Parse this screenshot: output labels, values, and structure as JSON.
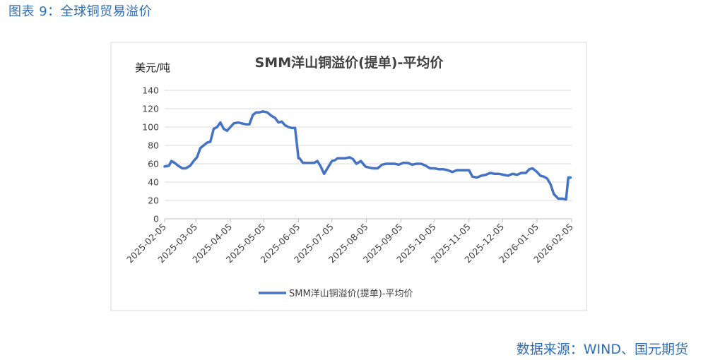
{
  "header": {
    "figure_title": "图表 9：全球铜贸易溢价"
  },
  "footer": {
    "source": "数据来源：WIND、国元期货"
  },
  "colors": {
    "accent": "#2e6db4",
    "series": "#4472c4",
    "grid": "#d9d9d9",
    "axis": "#bfbfbf"
  },
  "chart_data": {
    "type": "line",
    "title": "SMM洋山铜溢价(提单)-平均价",
    "unit_label": "美元/吨",
    "xlabel": "",
    "ylabel": "",
    "ylim": [
      0,
      140
    ],
    "yticks": [
      0,
      20,
      40,
      60,
      80,
      100,
      120,
      140
    ],
    "xlim": [
      "2025-02-05",
      "2026-02-05"
    ],
    "xticks": [
      "2025-02-05",
      "2025-03-05",
      "2025-04-05",
      "2025-05-05",
      "2025-06-05",
      "2025-07-05",
      "2025-08-05",
      "2025-09-05",
      "2025-10-05",
      "2025-11-05",
      "2025-12-05",
      "2026-01-05",
      "2026-02-05"
    ],
    "grid": true,
    "legend_position": "bottom",
    "series": [
      {
        "name": "SMM洋山铜溢价(提单)-平均价",
        "x": [
          "2025-02-05",
          "2025-02-09",
          "2025-02-11",
          "2025-02-14",
          "2025-02-17",
          "2025-02-21",
          "2025-02-24",
          "2025-02-28",
          "2025-03-03",
          "2025-03-06",
          "2025-03-09",
          "2025-03-12",
          "2025-03-15",
          "2025-03-18",
          "2025-03-21",
          "2025-03-24",
          "2025-03-27",
          "2025-03-30",
          "2025-04-02",
          "2025-04-05",
          "2025-04-08",
          "2025-04-12",
          "2025-04-15",
          "2025-04-19",
          "2025-04-22",
          "2025-04-25",
          "2025-04-28",
          "2025-05-01",
          "2025-05-04",
          "2025-05-08",
          "2025-05-12",
          "2025-05-15",
          "2025-05-18",
          "2025-05-21",
          "2025-05-24",
          "2025-05-27",
          "2025-05-30",
          "2025-06-02",
          "2025-06-05",
          "2025-06-06",
          "2025-06-09",
          "2025-06-12",
          "2025-06-16",
          "2025-06-19",
          "2025-06-22",
          "2025-06-25",
          "2025-06-28",
          "2025-07-01",
          "2025-07-05",
          "2025-07-08",
          "2025-07-10",
          "2025-07-14",
          "2025-07-17",
          "2025-07-21",
          "2025-07-24",
          "2025-07-27",
          "2025-07-31",
          "2025-08-04",
          "2025-08-07",
          "2025-08-11",
          "2025-08-15",
          "2025-08-19",
          "2025-08-23",
          "2025-08-26",
          "2025-08-30",
          "2025-09-03",
          "2025-09-07",
          "2025-09-11",
          "2025-09-15",
          "2025-09-19",
          "2025-09-23",
          "2025-09-27",
          "2025-10-01",
          "2025-10-05",
          "2025-10-09",
          "2025-10-13",
          "2025-10-17",
          "2025-10-21",
          "2025-10-25",
          "2025-10-29",
          "2025-11-02",
          "2025-11-05",
          "2025-11-08",
          "2025-11-12",
          "2025-11-16",
          "2025-11-20",
          "2025-11-24",
          "2025-11-28",
          "2025-12-02",
          "2025-12-06",
          "2025-12-10",
          "2025-12-14",
          "2025-12-18",
          "2025-12-22",
          "2025-12-26",
          "2025-12-29",
          "2026-01-01",
          "2026-01-05",
          "2026-01-08",
          "2026-01-11",
          "2026-01-14",
          "2026-01-17",
          "2026-01-20",
          "2026-01-24",
          "2026-01-28",
          "2026-01-31",
          "2026-02-02",
          "2026-02-04"
        ],
        "values": [
          57,
          58,
          63,
          61,
          58,
          55,
          55,
          58,
          63,
          67,
          77,
          80,
          83,
          84,
          98,
          100,
          105,
          98,
          96,
          100,
          104,
          105,
          104,
          103,
          103,
          113,
          116,
          116,
          117,
          116,
          112,
          110,
          105,
          106,
          102,
          100,
          99,
          99,
          66,
          66,
          61,
          61,
          61,
          61,
          63,
          57,
          49,
          55,
          63,
          64,
          66,
          66,
          66,
          67,
          65,
          60,
          63,
          57,
          56,
          55,
          55,
          59,
          60,
          60,
          60,
          59,
          61,
          61,
          59,
          60,
          60,
          58,
          55,
          55,
          54,
          54,
          53,
          51,
          53,
          53,
          53,
          53,
          46,
          45,
          47,
          48,
          50,
          49,
          49,
          48,
          47,
          49,
          48,
          50,
          50,
          54,
          55,
          51,
          47,
          46,
          44,
          38,
          27,
          22,
          22,
          21,
          45,
          45
        ]
      }
    ]
  }
}
